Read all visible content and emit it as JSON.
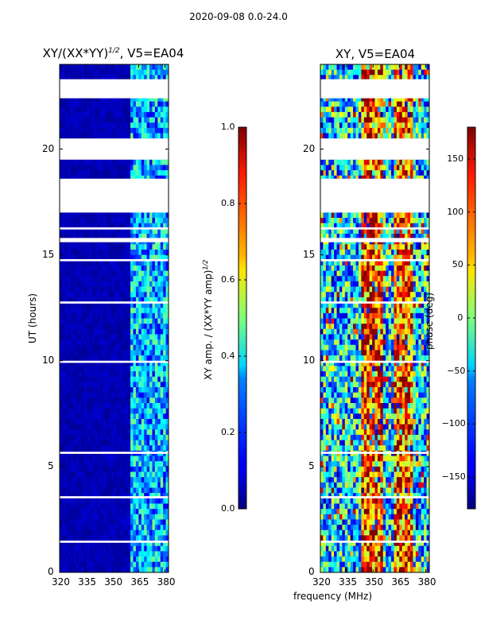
{
  "figure": {
    "suptitle": "2020-09-08 0.0-24.0",
    "shared_xlabel": "frequency (MHz)"
  },
  "chart_data": [
    {
      "type": "heatmap",
      "title": "XY/(XX*YY)1/2, V5=EA04",
      "title_main": "XY/(XX*YY)",
      "title_exp": "1/2",
      "title_tail": ", V5=EA04",
      "xlabel": "",
      "ylabel": "UT (hours)",
      "xlim": [
        320,
        382
      ],
      "ylim": [
        0,
        24
      ],
      "x_ticks": [
        320,
        335,
        350,
        365,
        380
      ],
      "x_tick_labels": [
        "320",
        "335",
        "350",
        "365",
        "380"
      ],
      "y_ticks": [
        0,
        5,
        10,
        15,
        20
      ],
      "y_tick_labels": [
        "0",
        "5",
        "10",
        "15",
        "20"
      ],
      "colorbar": {
        "label": "XY amp. / (XX*YY amp)1/2",
        "label_main": "XY amp. / (XX*YY amp)",
        "label_exp": "1/2",
        "range": [
          0.0,
          1.0
        ],
        "ticks": [
          0.0,
          0.2,
          0.4,
          0.6,
          0.8,
          1.0
        ],
        "tick_labels": [
          "0.0",
          "0.2",
          "0.4",
          "0.6",
          "0.8",
          "1.0"
        ],
        "colormap": "jet"
      },
      "description": "Mostly low amplitude (~0.05) below 360 MHz; elevated amplitude (~0.2-0.5) bands between ~360 and 382 MHz; horizontal white gaps mark flagged times.",
      "gaps_hours": [
        [
          22.4,
          23.3
        ],
        [
          19.5,
          20.5
        ],
        [
          17.0,
          18.6
        ],
        [
          16.2,
          16.3
        ],
        [
          15.6,
          15.8
        ],
        [
          14.7,
          14.8
        ],
        [
          12.7,
          12.8
        ],
        [
          9.9,
          10.0
        ],
        [
          5.6,
          5.7
        ],
        [
          3.5,
          3.6
        ],
        [
          1.4,
          1.5
        ]
      ]
    },
    {
      "type": "heatmap",
      "title": "XY, V5=EA04",
      "xlabel": "frequency (MHz)",
      "ylabel": "",
      "xlim": [
        320,
        382
      ],
      "ylim": [
        0,
        24
      ],
      "x_ticks": [
        320,
        335,
        350,
        365,
        380
      ],
      "x_tick_labels": [
        "320",
        "335",
        "350",
        "365",
        "380"
      ],
      "y_ticks": [
        0,
        5,
        10,
        15,
        20
      ],
      "y_tick_labels": [
        "0",
        "5",
        "10",
        "15",
        "20"
      ],
      "colorbar": {
        "label": "phase (deg)",
        "range": [
          -180,
          180
        ],
        "ticks": [
          -150,
          -100,
          -50,
          0,
          50,
          100,
          150
        ],
        "tick_labels": [
          "−150",
          "−100",
          "−50",
          "0",
          "50",
          "100",
          "150"
        ],
        "colormap": "jet"
      },
      "description": "Phase varies across full range; vertical red band near 345-355 MHz; blue/green regions elsewhere; same time gaps as amplitude panel.",
      "gaps_hours": [
        [
          22.4,
          23.3
        ],
        [
          19.5,
          20.5
        ],
        [
          17.0,
          18.6
        ],
        [
          16.2,
          16.3
        ],
        [
          15.6,
          15.8
        ],
        [
          14.7,
          14.8
        ],
        [
          12.7,
          12.8
        ],
        [
          9.9,
          10.0
        ],
        [
          5.6,
          5.7
        ],
        [
          3.5,
          3.6
        ],
        [
          1.4,
          1.5
        ]
      ]
    }
  ]
}
